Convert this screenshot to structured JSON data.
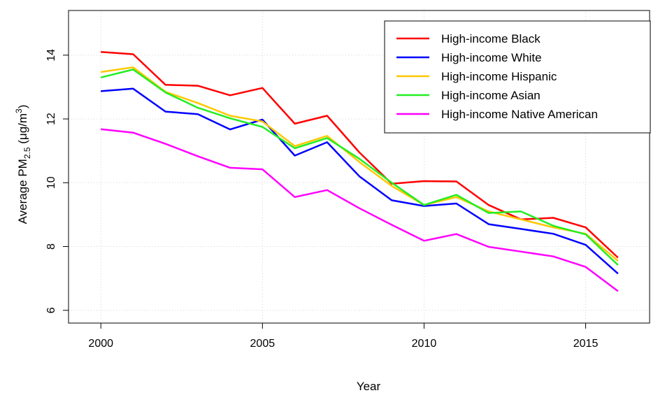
{
  "chart_data": {
    "type": "line",
    "title": "",
    "xlabel": "Year",
    "ylabel": {
      "prefix": "Average PM",
      "subscript": "2.5",
      "unit_open": " (μg/m",
      "superscript": "3",
      "unit_close": ")"
    },
    "xlim": [
      1999,
      2017
    ],
    "ylim": [
      5.6,
      15.4
    ],
    "x_ticks": [
      2000,
      2005,
      2010,
      2015
    ],
    "y_ticks": [
      6,
      8,
      10,
      12,
      14
    ],
    "grid": true,
    "legend_position": "top-right",
    "x": [
      2000,
      2001,
      2002,
      2003,
      2004,
      2005,
      2006,
      2007,
      2008,
      2009,
      2010,
      2011,
      2012,
      2013,
      2014,
      2015,
      2016
    ],
    "series": [
      {
        "name": "High-income Black",
        "color": "#ff0000",
        "values": [
          14.1,
          14.03,
          13.07,
          13.04,
          12.74,
          12.97,
          11.85,
          12.1,
          10.95,
          9.97,
          10.05,
          10.04,
          9.3,
          8.85,
          8.9,
          8.6,
          7.65
        ]
      },
      {
        "name": "High-income White",
        "color": "#0000ff",
        "values": [
          12.87,
          12.95,
          12.23,
          12.15,
          11.67,
          11.98,
          10.85,
          11.27,
          10.2,
          9.45,
          9.27,
          9.35,
          8.7,
          8.55,
          8.4,
          8.05,
          7.15
        ]
      },
      {
        "name": "High-income Hispanic",
        "color": "#ffc800",
        "values": [
          13.47,
          13.62,
          12.85,
          12.5,
          12.1,
          11.92,
          11.15,
          11.47,
          10.65,
          9.9,
          9.3,
          9.55,
          9.1,
          8.85,
          8.6,
          8.4,
          7.55
        ]
      },
      {
        "name": "High-income Asian",
        "color": "#22ee22",
        "values": [
          13.3,
          13.55,
          12.83,
          12.35,
          12.02,
          11.75,
          11.08,
          11.4,
          10.75,
          10.0,
          9.3,
          9.62,
          9.05,
          9.1,
          8.65,
          8.38,
          7.42
        ]
      },
      {
        "name": "High-income Native American",
        "color": "#ff00ff",
        "values": [
          11.68,
          11.57,
          11.22,
          10.83,
          10.47,
          10.42,
          9.55,
          9.77,
          9.2,
          8.68,
          8.18,
          8.39,
          7.99,
          7.84,
          7.69,
          7.36,
          6.6
        ]
      }
    ]
  }
}
